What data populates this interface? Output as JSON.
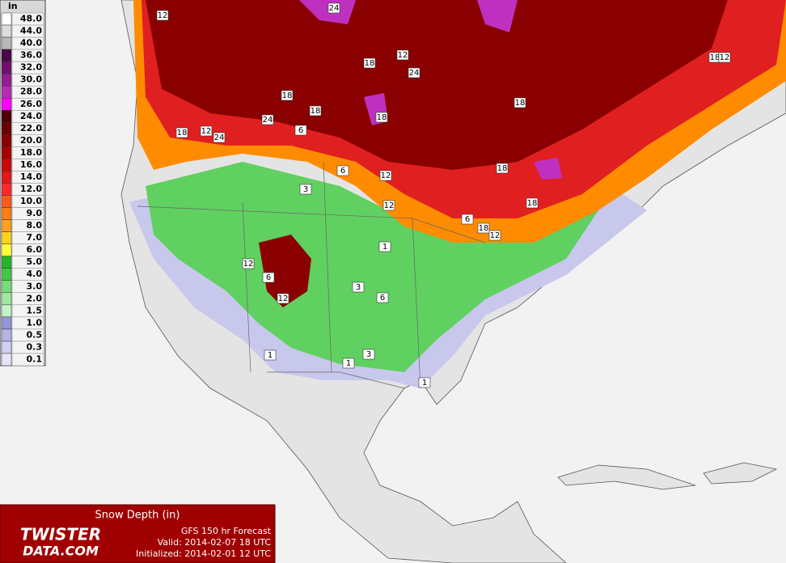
{
  "legend": {
    "unit": "in",
    "levels": [
      {
        "label": "48.0",
        "color": "#ffffff"
      },
      {
        "label": "44.0",
        "color": "#dcdcdc"
      },
      {
        "label": "40.0",
        "color": "#b8b8b8"
      },
      {
        "label": "36.0",
        "color": "#4a0848"
      },
      {
        "label": "32.0",
        "color": "#6e106c"
      },
      {
        "label": "30.0",
        "color": "#921c90"
      },
      {
        "label": "28.0",
        "color": "#b82ab4"
      },
      {
        "label": "26.0",
        "color": "#ff00ff"
      },
      {
        "label": "24.0",
        "color": "#4a0000"
      },
      {
        "label": "22.0",
        "color": "#6a0000"
      },
      {
        "label": "20.0",
        "color": "#8a0000"
      },
      {
        "label": "18.0",
        "color": "#a80000"
      },
      {
        "label": "16.0",
        "color": "#c80a0a"
      },
      {
        "label": "14.0",
        "color": "#e01818"
      },
      {
        "label": "12.0",
        "color": "#ff2a2a"
      },
      {
        "label": "10.0",
        "color": "#ff5a1e"
      },
      {
        "label": "9.0",
        "color": "#ff7e10"
      },
      {
        "label": "8.0",
        "color": "#ffa020"
      },
      {
        "label": "7.0",
        "color": "#ffd21e"
      },
      {
        "label": "6.0",
        "color": "#ffff3c"
      },
      {
        "label": "5.0",
        "color": "#28b428"
      },
      {
        "label": "4.0",
        "color": "#46c846"
      },
      {
        "label": "3.0",
        "color": "#78dc78"
      },
      {
        "label": "2.0",
        "color": "#a0e8a0"
      },
      {
        "label": "1.5",
        "color": "#c4f2c4"
      },
      {
        "label": "1.0",
        "color": "#9494d8"
      },
      {
        "label": "0.5",
        "color": "#b4b4e6"
      },
      {
        "label": "0.3",
        "color": "#d0d0f0"
      },
      {
        "label": "0.1",
        "color": "#e6e6f8"
      }
    ]
  },
  "contour_labels": [
    "12",
    "24",
    "18",
    "12",
    "24",
    "18",
    "18",
    "24",
    "6",
    "18",
    "18",
    "18",
    "12",
    "24",
    "6",
    "12",
    "3",
    "18",
    "12",
    "18",
    "6",
    "18",
    "12",
    "1",
    "12",
    "6",
    "3",
    "6",
    "12",
    "1",
    "1",
    "3",
    "1",
    "18",
    "12"
  ],
  "info": {
    "title": "Snow Depth (in)",
    "logo_line1": "TWISTER",
    "logo_line2": "DATA.COM",
    "model": "GFS 150 hr Forecast",
    "valid": "Valid: 2014-02-07 18 UTC",
    "initialized": "Initialized: 2014-02-01 12 UTC"
  }
}
